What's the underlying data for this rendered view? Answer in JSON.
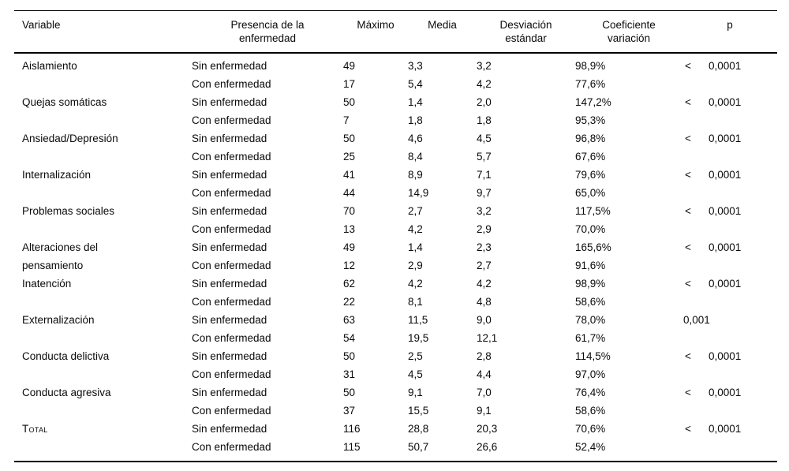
{
  "table": {
    "header": {
      "variable": "Variable",
      "presencia": "Presencia de la\nenfermedad",
      "maximo": "Máximo",
      "media": "Media",
      "desviacion": "Desviación\nestándar",
      "coeficiente": "Coeficiente\nvariación",
      "p": "p"
    },
    "groups": [
      {
        "variable": "Aislamiento",
        "rows": [
          {
            "presencia": "Sin enfermedad",
            "maximo": "49",
            "media": "3,3",
            "desviacion": "3,2",
            "coeficiente": "98,9%",
            "p": "< 0,0001"
          },
          {
            "presencia": "Con enfermedad",
            "maximo": "17",
            "media": "5,4",
            "desviacion": "4,2",
            "coeficiente": "77,6%",
            "p": ""
          }
        ]
      },
      {
        "variable": "Quejas somáticas",
        "rows": [
          {
            "presencia": "Sin enfermedad",
            "maximo": "50",
            "media": "1,4",
            "desviacion": "2,0",
            "coeficiente": "147,2%",
            "p": "< 0,0001"
          },
          {
            "presencia": "Con enfermedad",
            "maximo": "7",
            "media": "1,8",
            "desviacion": "1,8",
            "coeficiente": "95,3%",
            "p": ""
          }
        ]
      },
      {
        "variable": "Ansiedad/Depresión",
        "rows": [
          {
            "presencia": "Sin enfermedad",
            "maximo": "50",
            "media": "4,6",
            "desviacion": "4,5",
            "coeficiente": "96,8%",
            "p": "< 0,0001"
          },
          {
            "presencia": "Con enfermedad",
            "maximo": "25",
            "media": "8,4",
            "desviacion": "5,7",
            "coeficiente": "67,6%",
            "p": ""
          }
        ]
      },
      {
        "variable": "Internalización",
        "rows": [
          {
            "presencia": "Sin enfermedad",
            "maximo": "41",
            "media": "8,9",
            "desviacion": "7,1",
            "coeficiente": "79,6%",
            "p": "< 0,0001"
          },
          {
            "presencia": "Con enfermedad",
            "maximo": "44",
            "media": "14,9",
            "desviacion": "9,7",
            "coeficiente": "65,0%",
            "p": ""
          }
        ]
      },
      {
        "variable": "Problemas sociales",
        "rows": [
          {
            "presencia": "Sin enfermedad",
            "maximo": "70",
            "media": "2,7",
            "desviacion": "3,2",
            "coeficiente": "117,5%",
            "p": "< 0,0001"
          },
          {
            "presencia": "Con enfermedad",
            "maximo": "13",
            "media": "4,2",
            "desviacion": "2,9",
            "coeficiente": "70,0%",
            "p": ""
          }
        ]
      },
      {
        "variable": "Alteraciones del\npensamiento",
        "rows": [
          {
            "presencia": "Sin enfermedad",
            "maximo": "49",
            "media": "1,4",
            "desviacion": "2,3",
            "coeficiente": "165,6%",
            "p": "< 0,0001"
          },
          {
            "presencia": "Con enfermedad",
            "maximo": "12",
            "media": "2,9",
            "desviacion": "2,7",
            "coeficiente": "91,6%",
            "p": ""
          }
        ]
      },
      {
        "variable": "Inatención",
        "rows": [
          {
            "presencia": "Sin enfermedad",
            "maximo": "62",
            "media": "4,2",
            "desviacion": "4,2",
            "coeficiente": "98,9%",
            "p": "< 0,0001"
          },
          {
            "presencia": "Con enfermedad",
            "maximo": "22",
            "media": "8,1",
            "desviacion": "4,8",
            "coeficiente": "58,6%",
            "p": ""
          }
        ]
      },
      {
        "variable": "Externalización",
        "rows": [
          {
            "presencia": "Sin enfermedad",
            "maximo": "63",
            "media": "11,5",
            "desviacion": "9,0",
            "coeficiente": "78,0%",
            "p": "0,001"
          },
          {
            "presencia": "Con enfermedad",
            "maximo": "54",
            "media": "19,5",
            "desviacion": "12,1",
            "coeficiente": "61,7%",
            "p": ""
          }
        ]
      },
      {
        "variable": "Conducta delictiva",
        "rows": [
          {
            "presencia": "Sin enfermedad",
            "maximo": "50",
            "media": "2,5",
            "desviacion": "2,8",
            "coeficiente": "114,5%",
            "p": "< 0,0001"
          },
          {
            "presencia": "Con enfermedad",
            "maximo": "31",
            "media": "4,5",
            "desviacion": "4,4",
            "coeficiente": "97,0%",
            "p": ""
          }
        ]
      },
      {
        "variable": "Conducta agresiva",
        "rows": [
          {
            "presencia": "Sin enfermedad",
            "maximo": "50",
            "media": "9,1",
            "desviacion": "7,0",
            "coeficiente": "76,4%",
            "p": "< 0,0001"
          },
          {
            "presencia": "Con enfermedad",
            "maximo": "37",
            "media": "15,5",
            "desviacion": "9,1",
            "coeficiente": "58,6%",
            "p": ""
          }
        ]
      },
      {
        "variable": "Total",
        "small_caps": true,
        "rows": [
          {
            "presencia": "Sin enfermedad",
            "maximo": "116",
            "media": "28,8",
            "desviacion": "20,3",
            "coeficiente": "70,6%",
            "p": "< 0,0001"
          },
          {
            "presencia": "Con enfermedad",
            "maximo": "115",
            "media": "50,7",
            "desviacion": "26,6",
            "coeficiente": "52,4%",
            "p": ""
          }
        ]
      }
    ]
  }
}
